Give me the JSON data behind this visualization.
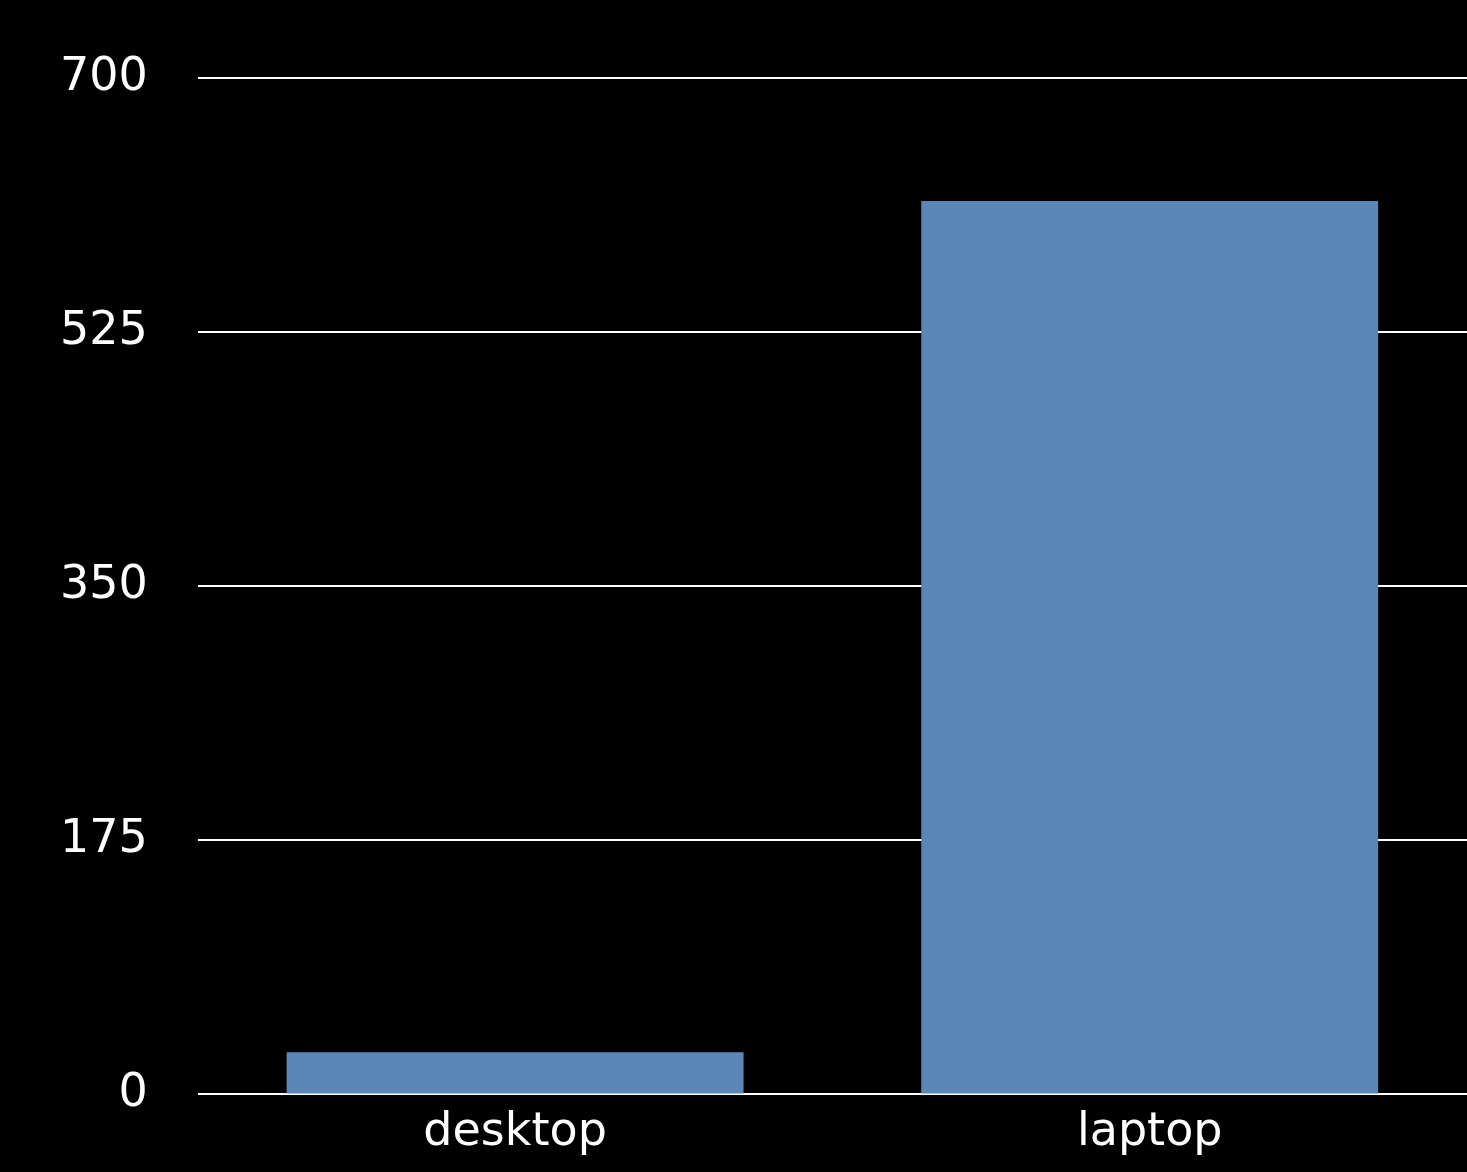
{
  "chart_data": {
    "type": "bar",
    "categories": [
      "desktop",
      "laptop"
    ],
    "values": [
      29,
      615
    ],
    "color": "#5b87b8",
    "ylim": [
      0,
      700
    ],
    "yticks": [
      0,
      175,
      350,
      525,
      700
    ],
    "grid": "y"
  }
}
